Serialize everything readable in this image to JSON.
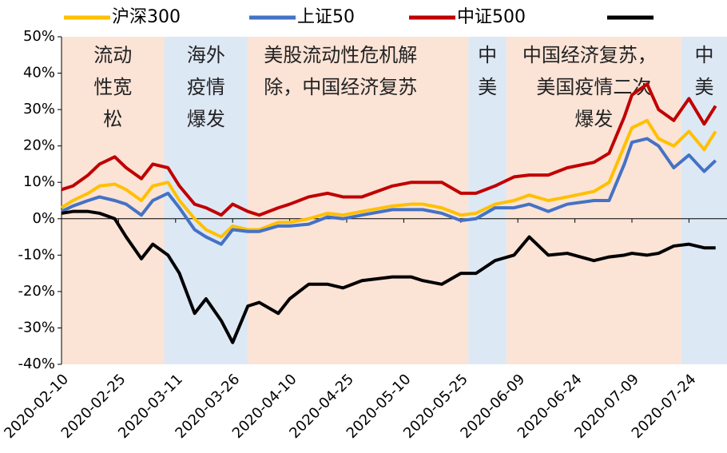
{
  "chart_data": {
    "type": "line",
    "x": [
      "2020-02-10",
      "2020-02-13",
      "2020-02-17",
      "2020-02-20",
      "2020-02-24",
      "2020-02-27",
      "2020-03-02",
      "2020-03-05",
      "2020-03-09",
      "2020-03-12",
      "2020-03-16",
      "2020-03-19",
      "2020-03-23",
      "2020-03-26",
      "2020-03-30",
      "2020-04-02",
      "2020-04-07",
      "2020-04-10",
      "2020-04-15",
      "2020-04-20",
      "2020-04-24",
      "2020-04-29",
      "2020-05-07",
      "2020-05-12",
      "2020-05-15",
      "2020-05-20",
      "2020-05-25",
      "2020-05-29",
      "2020-06-03",
      "2020-06-08",
      "2020-06-12",
      "2020-06-17",
      "2020-06-22",
      "2020-06-29",
      "2020-07-03",
      "2020-07-07",
      "2020-07-09",
      "2020-07-13",
      "2020-07-16",
      "2020-07-20",
      "2020-07-24",
      "2020-07-28",
      "2020-07-31"
    ],
    "series": [
      {
        "name": "沪深300",
        "color": "#ffc000",
        "values": [
          3,
          5,
          7,
          9,
          9.5,
          8,
          5,
          9,
          10,
          5,
          0,
          -3,
          -5,
          -2,
          -3,
          -3,
          -1,
          -1,
          0,
          1.5,
          1,
          2,
          3.5,
          4,
          4,
          3,
          1,
          1.5,
          4,
          5,
          6.5,
          5,
          6,
          7.5,
          10,
          20,
          25,
          27,
          22,
          20,
          24,
          19,
          24
        ]
      },
      {
        "name": "上证50",
        "color": "#4472c4",
        "values": [
          2,
          3.5,
          5,
          6,
          5,
          4,
          1,
          5,
          7,
          3,
          -3,
          -5,
          -7,
          -3,
          -3.5,
          -3.5,
          -2,
          -2,
          -1.5,
          0.5,
          0,
          1,
          2.5,
          2.5,
          2.5,
          1.5,
          -0.5,
          0,
          3,
          3,
          4,
          2,
          4,
          5,
          5,
          15,
          21,
          22,
          20,
          14,
          17.5,
          13,
          16
        ]
      },
      {
        "name": "中证500",
        "color": "#c00000",
        "values": [
          8,
          9,
          12,
          15,
          17,
          14,
          11,
          15,
          14,
          9,
          4,
          3,
          1,
          4,
          2,
          1,
          3,
          4,
          6,
          7,
          6,
          6,
          9,
          10,
          10,
          10,
          7,
          7,
          9,
          11.5,
          12,
          12,
          14,
          15.5,
          18,
          28,
          34,
          37,
          30,
          27,
          33,
          26,
          31
        ]
      },
      {
        "color": "#000000",
        "values": [
          1.5,
          2,
          2,
          1.5,
          0,
          -5,
          -11,
          -7,
          -10,
          -15,
          -26,
          -22,
          -28,
          -34,
          -24,
          -23,
          -26,
          -22,
          -18,
          -18,
          -19,
          -17,
          -16,
          -16,
          -17,
          -18,
          -15,
          -15,
          -11.5,
          -10,
          -5,
          -10,
          -9.5,
          -11.5,
          -10.5,
          -10,
          -9.5,
          -10,
          -9.5,
          -7.5,
          -7,
          -8,
          -8
        ]
      }
    ],
    "xlim": [
      "2020-02-10",
      "2020-08-03"
    ],
    "xticks": [
      "2020-02-10",
      "2020-02-25",
      "2020-03-11",
      "2020-03-26",
      "2020-04-10",
      "2020-04-25",
      "2020-05-10",
      "2020-05-25",
      "2020-06-09",
      "2020-06-24",
      "2020-07-09",
      "2020-07-24"
    ],
    "ylim": [
      -40,
      50
    ],
    "yticks": [
      {
        "value": -40,
        "label": "-40%"
      },
      {
        "value": -30,
        "label": "-30%"
      },
      {
        "value": -20,
        "label": "-20%"
      },
      {
        "value": -10,
        "label": "-10%"
      },
      {
        "value": 0,
        "label": "0%"
      },
      {
        "value": 10,
        "label": "10%"
      },
      {
        "value": 20,
        "label": "20%"
      },
      {
        "value": 30,
        "label": "30%"
      },
      {
        "value": 40,
        "label": "40%"
      },
      {
        "value": 50,
        "label": "50%"
      }
    ],
    "regions": [
      {
        "from": "2020-02-10",
        "to": "2020-03-08",
        "color": "#fbe3d6",
        "label": [
          "流动",
          "性宽",
          "松"
        ]
      },
      {
        "from": "2020-03-08",
        "to": "2020-03-30",
        "color": "#dde8f5",
        "label": [
          "海外",
          "疫情",
          "爆发"
        ]
      },
      {
        "from": "2020-03-30",
        "to": "2020-05-27",
        "color": "#fbe3d6",
        "label": [
          "美股流动性危机解",
          "除，中国经济复苏"
        ]
      },
      {
        "from": "2020-05-27",
        "to": "2020-06-06",
        "color": "#dde8f5",
        "label": [
          "中",
          "美"
        ]
      },
      {
        "from": "2020-06-06",
        "to": "2020-07-22",
        "color": "#fbe3d6",
        "label": [
          "中国经济复苏，",
          "美国疫情二次",
          "爆发"
        ]
      },
      {
        "from": "2020-07-22",
        "to": "2020-08-03",
        "color": "#dde8f5",
        "label": [
          "中",
          "美"
        ]
      }
    ]
  }
}
